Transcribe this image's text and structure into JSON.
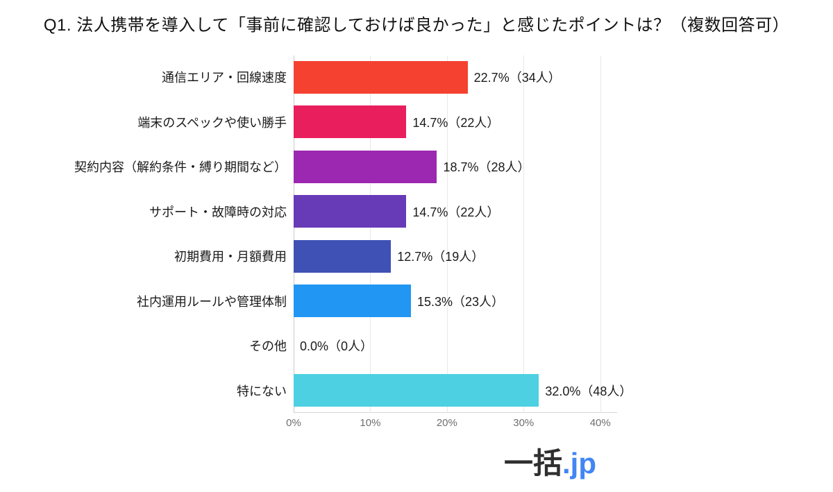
{
  "title": "Q1. 法人携帯を導入して「事前に確認しておけば良かった」と感じたポイントは？（複数回答可）",
  "chart_data": {
    "type": "bar",
    "orientation": "horizontal",
    "title": "Q1. 法人携帯を導入して「事前に確認しておけば良かった」と感じたポイントは？（複数回答可）",
    "categories": [
      "通信エリア・回線速度",
      "端末のスペックや使い勝手",
      "契約内容（解約条件・縛り期間など）",
      "サポート・故障時の対応",
      "初期費用・月額費用",
      "社内運用ルールや管理体制",
      "その他",
      "特にない"
    ],
    "values": [
      22.7,
      14.7,
      18.7,
      14.7,
      12.7,
      15.3,
      0.0,
      32.0
    ],
    "counts": [
      34,
      22,
      28,
      22,
      19,
      23,
      0,
      48
    ],
    "value_labels": [
      "22.7%（34人）",
      "14.7%（22人）",
      "18.7%（28人）",
      "14.7%（22人）",
      "12.7%（19人）",
      "15.3%（23人）",
      "0.0%（0人）",
      "32.0%（48人）"
    ],
    "bar_colors": [
      "#F44130",
      "#E91E5C",
      "#9C27B0",
      "#673AB7",
      "#3F51B5",
      "#2196F3",
      null,
      "#4DD0E1"
    ],
    "x_ticks": [
      "0%",
      "10%",
      "20%",
      "30%",
      "40%"
    ],
    "x_tick_values": [
      0,
      10,
      20,
      30,
      40
    ],
    "xlim": [
      0,
      42.2
    ],
    "grid": "vertical",
    "legend": "none"
  },
  "footer": {
    "logo_dark": "一括",
    "logo_suffix": ".jp",
    "logo_suffix_color": "#4285f4"
  }
}
